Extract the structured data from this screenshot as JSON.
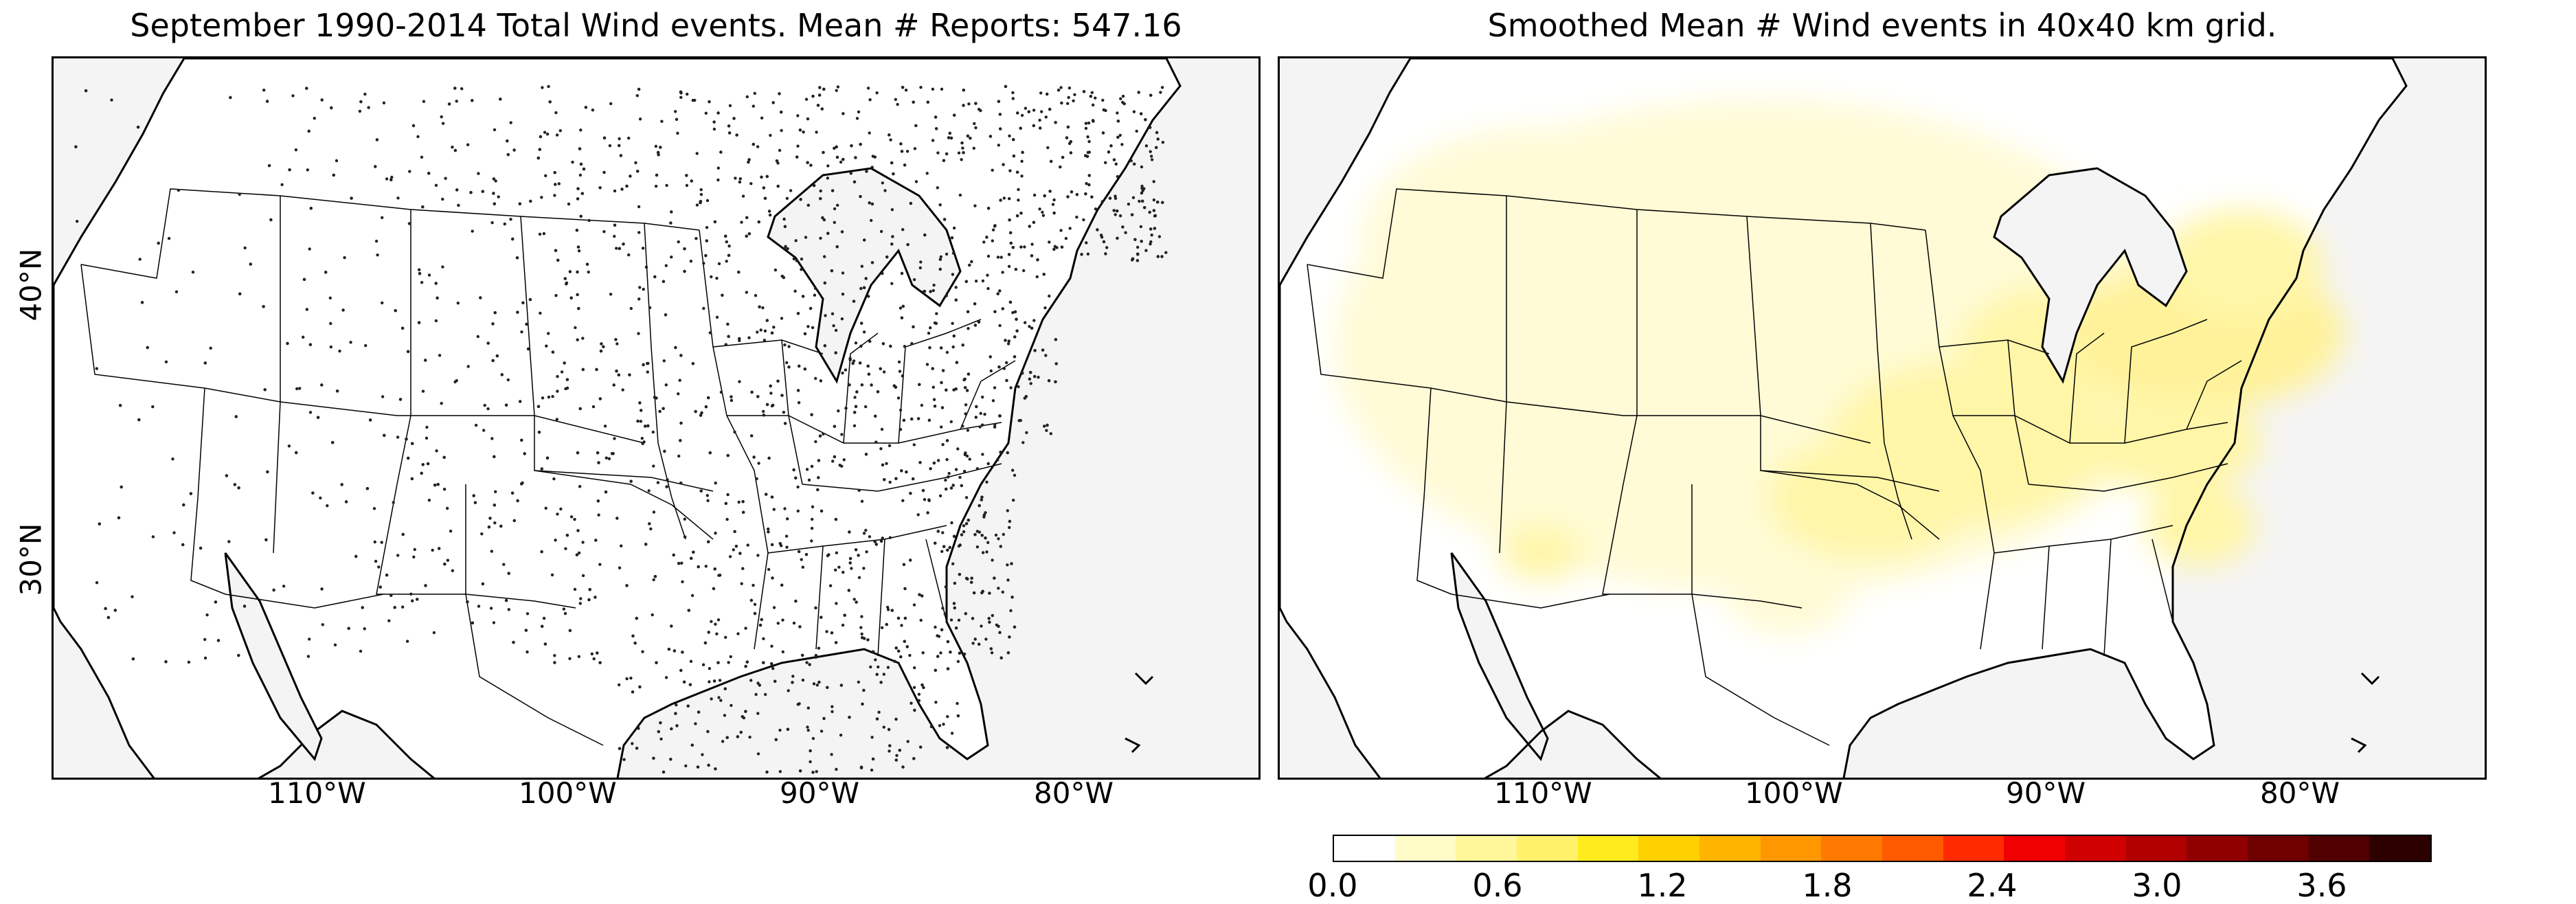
{
  "panels": [
    {
      "title": "September 1990-2014 Total Wind events. Mean # Reports: 547.16"
    },
    {
      "title": "Smoothed Mean # Wind events in 40x40 km grid."
    }
  ],
  "latitude_labels": [
    "40°N",
    "30°N"
  ],
  "longitude_labels": [
    "110°W",
    "100°W",
    "90°W",
    "80°W"
  ],
  "colorbar": {
    "tick_labels": [
      "0.0",
      "0.6",
      "1.2",
      "1.8",
      "2.4",
      "3.0",
      "3.6"
    ],
    "colors": [
      "#ffffff",
      "#fffcc8",
      "#fff79a",
      "#fff26a",
      "#ffeb1e",
      "#ffd000",
      "#ffb400",
      "#ff9800",
      "#ff7a00",
      "#ff5a00",
      "#ff2a00",
      "#f00000",
      "#d00000",
      "#b00000",
      "#900000",
      "#6e0000",
      "#500000",
      "#2d0000"
    ]
  },
  "colors": {
    "land": "#ffffff",
    "ocean": "#f4f4f4",
    "points": "#222222"
  }
}
